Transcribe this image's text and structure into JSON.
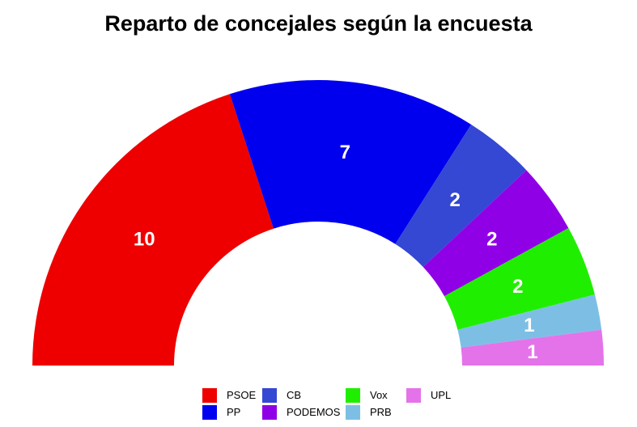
{
  "chart_data": {
    "type": "pie",
    "title": "Reparto de concejales según la encuesta",
    "layout": "half-donut (parliament)",
    "categories": [
      "PSOE",
      "PP",
      "CB",
      "PODEMOS",
      "Vox",
      "PRB",
      "UPL"
    ],
    "values": [
      10,
      7,
      2,
      2,
      2,
      1,
      1
    ],
    "colors": [
      "#ee0000",
      "#0000ee",
      "#3448d4",
      "#9000e6",
      "#20ee00",
      "#7dbfe4",
      "#e473ea"
    ],
    "legend_position": "bottom"
  }
}
